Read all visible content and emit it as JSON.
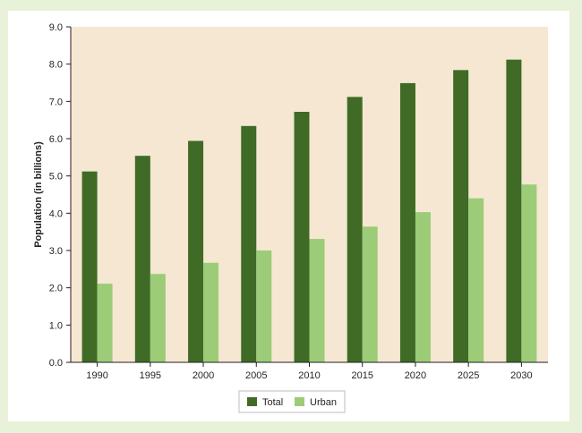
{
  "chart_data": {
    "type": "bar",
    "title": "",
    "xlabel": "",
    "ylabel": "Population (in billions)",
    "ylim": [
      0,
      9
    ],
    "ytick_step": 1,
    "yticks": [
      "0.0",
      "1.0",
      "2.0",
      "3.0",
      "4.0",
      "5.0",
      "6.0",
      "7.0",
      "8.0",
      "9.0"
    ],
    "categories": [
      "1990",
      "1995",
      "2000",
      "2005",
      "2010",
      "2015",
      "2020",
      "2025",
      "2030"
    ],
    "series": [
      {
        "name": "Total",
        "color": "#3f6b26",
        "values": [
          5.12,
          5.54,
          5.94,
          6.34,
          6.72,
          7.12,
          7.49,
          7.84,
          8.12
        ]
      },
      {
        "name": "Urban",
        "color": "#9ccc77",
        "values": [
          2.11,
          2.37,
          2.67,
          3.0,
          3.31,
          3.64,
          4.03,
          4.4,
          4.77
        ]
      }
    ],
    "grid": false,
    "legend_position": "bottom-center",
    "plot_background": "#f5e7d1"
  }
}
